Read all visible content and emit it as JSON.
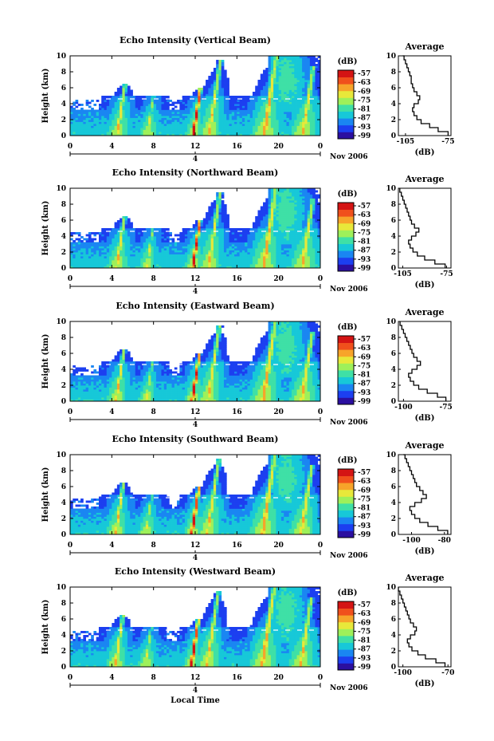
{
  "figure": {
    "xlabel": "Local Time",
    "date_label": "Nov 2006",
    "day_marker": "4",
    "cbar_unit": "(dB)",
    "avg_title": "Average",
    "avg_xlabel": "(dB)"
  },
  "colorscale": [
    "#2b0fa0",
    "#1c3ff0",
    "#1a86f2",
    "#17c8d8",
    "#3fe0a6",
    "#9ef05a",
    "#e8e83a",
    "#f7a42a",
    "#f0501c",
    "#d41414"
  ],
  "chart_data": [
    {
      "type": "heatmap",
      "title": "Echo Intensity (Vertical Beam)",
      "ylabel": "Height (km)",
      "xlim": [
        0,
        24
      ],
      "ylim": [
        0,
        10
      ],
      "xticks": [
        "0",
        "4",
        "8",
        "12",
        "16",
        "20",
        "0"
      ],
      "yticks": [
        "0",
        "2",
        "4",
        "6",
        "8",
        "10"
      ],
      "colorbar": {
        "unit": "(dB)",
        "ticks": [
          "-57",
          "-63",
          "-69",
          "-75",
          "-81",
          "-87",
          "-93",
          "-99"
        ]
      },
      "average_profile": {
        "title": "Average",
        "xlabel": "(dB)",
        "xlim": [
          -110,
          -73
        ],
        "xticks": [
          "-105",
          "-75"
        ],
        "height_km": [
          0,
          0.5,
          1,
          1.5,
          2,
          2.5,
          3,
          3.5,
          4,
          4.5,
          5,
          5.5,
          6,
          6.5,
          7,
          7.5,
          8,
          8.5,
          9,
          9.5,
          10
        ],
        "db": [
          -75,
          -82,
          -88,
          -94,
          -97,
          -99,
          -100,
          -99,
          -96,
          -95,
          -97,
          -99,
          -100,
          -101,
          -101,
          -102,
          -103,
          -104,
          -105,
          -106,
          -107
        ]
      }
    },
    {
      "type": "heatmap",
      "title": "Echo Intensity (Northward Beam)",
      "ylabel": "Height (km)",
      "xlim": [
        0,
        24
      ],
      "ylim": [
        0,
        10
      ],
      "xticks": [
        "0",
        "4",
        "8",
        "12",
        "16",
        "20",
        "0"
      ],
      "yticks": [
        "0",
        "2",
        "4",
        "6",
        "8",
        "10"
      ],
      "colorbar": {
        "unit": "(dB)",
        "ticks": [
          "-57",
          "-63",
          "-69",
          "-75",
          "-81",
          "-87",
          "-93",
          "-99"
        ]
      },
      "average_profile": {
        "title": "Average",
        "xlabel": "(dB)",
        "xlim": [
          -108,
          -72
        ],
        "xticks": [
          "-105",
          "-75"
        ],
        "height_km": [
          0,
          0.5,
          1,
          1.5,
          2,
          2.5,
          3,
          3.5,
          4,
          4.5,
          5,
          5.5,
          6,
          6.5,
          7,
          7.5,
          8,
          8.5,
          9,
          9.5,
          10
        ],
        "db": [
          -76,
          -83,
          -90,
          -95,
          -98,
          -100,
          -101,
          -99,
          -96,
          -94,
          -97,
          -99,
          -100,
          -101,
          -102,
          -103,
          -104,
          -105,
          -106,
          -107,
          -107
        ]
      }
    },
    {
      "type": "heatmap",
      "title": "Echo Intensity (Eastward Beam)",
      "ylabel": "Height (km)",
      "xlim": [
        0,
        24
      ],
      "ylim": [
        0,
        10
      ],
      "xticks": [
        "0",
        "4",
        "8",
        "12",
        "16",
        "20",
        "0"
      ],
      "yticks": [
        "0",
        "2",
        "4",
        "6",
        "8",
        "10"
      ],
      "colorbar": {
        "unit": "(dB)",
        "ticks": [
          "-57",
          "-63",
          "-69",
          "-75",
          "-81",
          "-87",
          "-93",
          "-99"
        ]
      },
      "average_profile": {
        "title": "Average",
        "xlabel": "(dB)",
        "xlim": [
          -103,
          -72
        ],
        "xticks": [
          "-100",
          "-75"
        ],
        "height_km": [
          0,
          0.5,
          1,
          1.5,
          2,
          2.5,
          3,
          3.5,
          4,
          4.5,
          5,
          5.5,
          6,
          6.5,
          7,
          7.5,
          8,
          8.5,
          9,
          9.5,
          10
        ],
        "db": [
          -75,
          -80,
          -86,
          -91,
          -94,
          -96,
          -97,
          -95,
          -92,
          -90,
          -92,
          -94,
          -95,
          -96,
          -97,
          -98,
          -99,
          -100,
          -101,
          -102,
          -102
        ]
      }
    },
    {
      "type": "heatmap",
      "title": "Echo Intensity (Southward Beam)",
      "ylabel": "Height (km)",
      "xlim": [
        0,
        24
      ],
      "ylim": [
        0,
        10
      ],
      "xticks": [
        "0",
        "4",
        "8",
        "12",
        "16",
        "20",
        "0"
      ],
      "yticks": [
        "0",
        "2",
        "4",
        "6",
        "8",
        "10"
      ],
      "colorbar": {
        "unit": "(dB)",
        "ticks": [
          "-57",
          "-63",
          "-69",
          "-75",
          "-81",
          "-87",
          "-93",
          "-99"
        ]
      },
      "average_profile": {
        "title": "Average",
        "xlabel": "(dB)",
        "xlim": [
          -108,
          -76
        ],
        "xticks": [
          "-100",
          "-80"
        ],
        "height_km": [
          0,
          0.5,
          1,
          1.5,
          2,
          2.5,
          3,
          3.5,
          4,
          4.5,
          5,
          5.5,
          6,
          6.5,
          7,
          7.5,
          8,
          8.5,
          9,
          9.5,
          10
        ],
        "db": [
          -78,
          -84,
          -90,
          -95,
          -98,
          -100,
          -101,
          -98,
          -94,
          -91,
          -93,
          -95,
          -97,
          -98,
          -99,
          -100,
          -101,
          -102,
          -103,
          -104,
          -105
        ]
      }
    },
    {
      "type": "heatmap",
      "title": "Echo Intensity (Westward Beam)",
      "ylabel": "Height (km)",
      "xlim": [
        0,
        24
      ],
      "ylim": [
        0,
        10
      ],
      "xticks": [
        "0",
        "4",
        "8",
        "12",
        "16",
        "20",
        "0"
      ],
      "yticks": [
        "0",
        "2",
        "4",
        "6",
        "8",
        "10"
      ],
      "colorbar": {
        "unit": "(dB)",
        "ticks": [
          "-57",
          "-63",
          "-69",
          "-75",
          "-81",
          "-87",
          "-93",
          "-99"
        ]
      },
      "average_profile": {
        "title": "Average",
        "xlabel": "(dB)",
        "xlim": [
          -103,
          -68
        ],
        "xticks": [
          "-100",
          "-70"
        ],
        "height_km": [
          0,
          0.5,
          1,
          1.5,
          2,
          2.5,
          3,
          3.5,
          4,
          4.5,
          5,
          5.5,
          6,
          6.5,
          7,
          7.5,
          8,
          8.5,
          9,
          9.5,
          10
        ],
        "db": [
          -72,
          -78,
          -85,
          -90,
          -94,
          -96,
          -97,
          -95,
          -92,
          -91,
          -93,
          -95,
          -96,
          -97,
          -98,
          -99,
          -100,
          -101,
          -102,
          -103,
          -103
        ]
      }
    }
  ]
}
